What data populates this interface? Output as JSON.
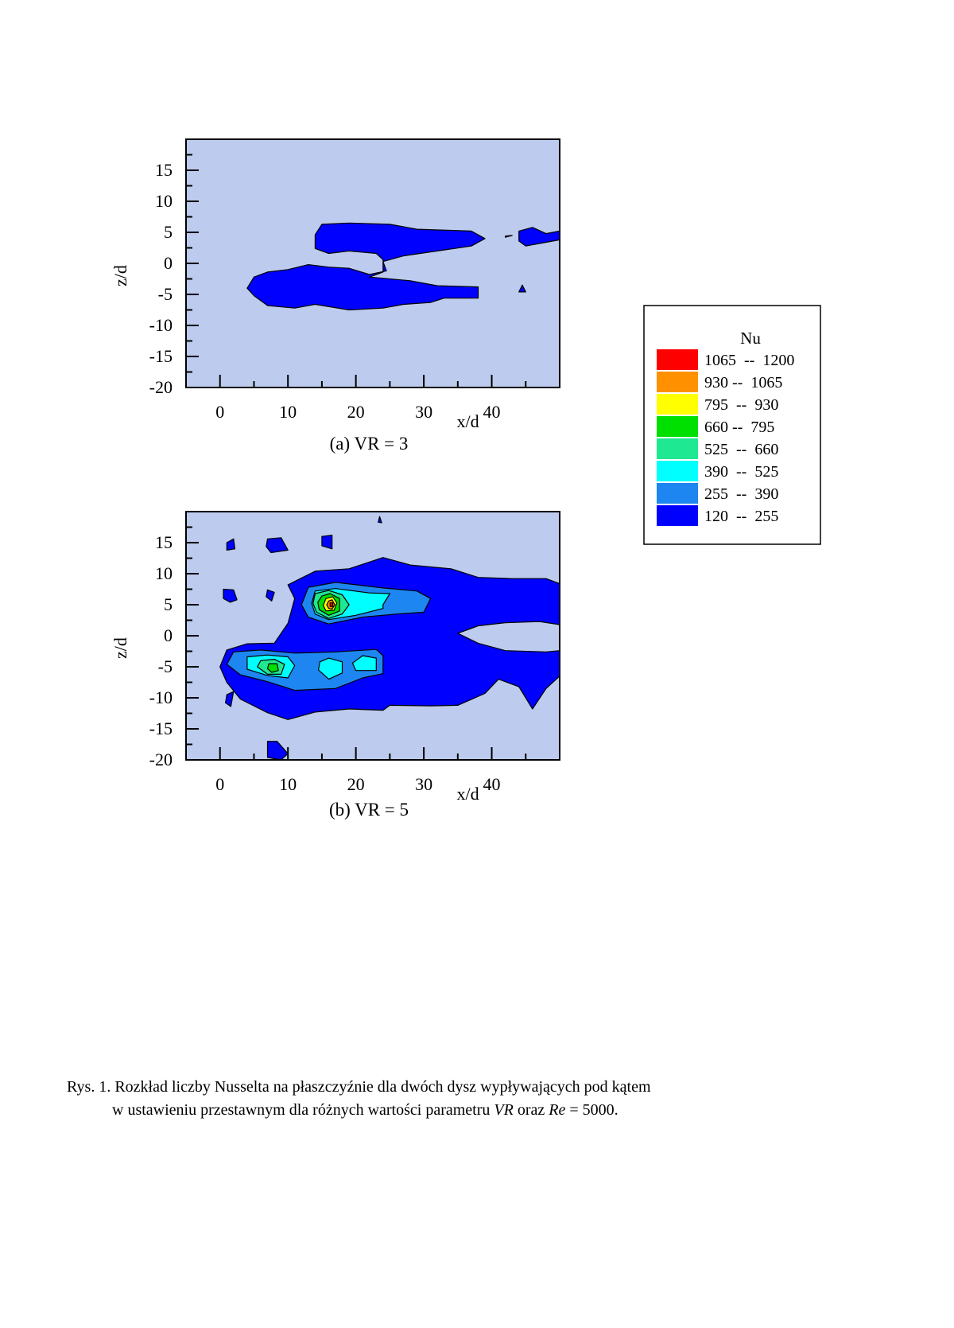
{
  "colors": {
    "background": "#bccbee",
    "levels": [
      "#0000ff",
      "#1e86f0",
      "#00ffff",
      "#1ee892",
      "#00e000",
      "#ffff00",
      "#ff9000",
      "#ff0000"
    ]
  },
  "legend": {
    "title": "Nu",
    "items": [
      {
        "range": "1065  --  1200",
        "color": "#ff0000"
      },
      {
        "range": "930 --  1065",
        "color": "#ff9000"
      },
      {
        "range": "795  --  930",
        "color": "#ffff00"
      },
      {
        "range": "660 --  795",
        "color": "#00e000"
      },
      {
        "range": "525  --  660",
        "color": "#1ee892"
      },
      {
        "range": "390  --  525",
        "color": "#00ffff"
      },
      {
        "range": "255  --  390",
        "color": "#1e86f0"
      },
      {
        "range": "120  --  255",
        "color": "#0000ff"
      }
    ]
  },
  "caption": {
    "line1": "Rys. 1. Rozkład liczby Nusselta na płaszczyźnie dla dwóch dysz wypływających pod kątem",
    "line2_a": "w ustawieniu przestawnym dla różnych wartości parametru ",
    "line2_vr": "VR",
    "line2_b": " oraz ",
    "line2_re": "Re",
    "line2_c": " = 5000."
  },
  "chart_data": [
    {
      "type": "heatmap",
      "subtitle": "(a) VR = 3",
      "xlabel": "x/d",
      "ylabel": "z/d",
      "xlim": [
        -5,
        50
      ],
      "ylim": [
        -20,
        20
      ],
      "xticks": [
        0,
        10,
        20,
        30,
        40
      ],
      "yticks": [
        15,
        10,
        5,
        0,
        -5,
        -10,
        -15,
        -20
      ],
      "contour_levels": [
        120,
        255,
        390,
        525,
        660,
        795,
        930,
        1065,
        1200
      ],
      "regions": [
        {
          "level_min": 120,
          "level_max": 255,
          "polygon": [
            [
              19,
              6.5
            ],
            [
              25,
              6.3
            ],
            [
              29,
              5.5
            ],
            [
              37,
              5.2
            ],
            [
              39,
              4
            ],
            [
              37,
              2.8
            ],
            [
              32,
              2
            ],
            [
              27,
              1.2
            ],
            [
              24,
              0.3
            ],
            [
              24.5,
              -1.2
            ],
            [
              22,
              -1.8
            ],
            [
              19,
              -0.8
            ],
            [
              16,
              -0.6
            ],
            [
              13,
              -0.2
            ],
            [
              10,
              -1
            ],
            [
              7,
              -1.4
            ],
            [
              5,
              -2.2
            ],
            [
              4,
              -4
            ],
            [
              5,
              -5.2
            ],
            [
              7,
              -6.8
            ],
            [
              11,
              -7.2
            ],
            [
              14,
              -6.6
            ],
            [
              19,
              -7.5
            ],
            [
              24,
              -7.2
            ],
            [
              27,
              -6.6
            ],
            [
              31,
              -6.3
            ],
            [
              33,
              -5.6
            ],
            [
              38,
              -5.6
            ],
            [
              38,
              -3.8
            ],
            [
              32,
              -3.6
            ],
            [
              28,
              -2.8
            ],
            [
              22,
              -2.2
            ],
            [
              24,
              -1.4
            ],
            [
              24,
              0.6
            ],
            [
              23,
              1.6
            ],
            [
              19,
              2
            ],
            [
              16,
              1.6
            ],
            [
              14,
              2.4
            ],
            [
              14,
              4.6
            ],
            [
              15,
              6.3
            ]
          ]
        },
        {
          "level_min": 120,
          "level_max": 255,
          "polygon": [
            [
              44,
              5.2
            ],
            [
              46,
              5.8
            ],
            [
              48,
              4.8
            ],
            [
              50,
              5.2
            ],
            [
              50,
              3.8
            ],
            [
              48,
              3.4
            ],
            [
              45,
              2.8
            ],
            [
              44,
              3.6
            ]
          ]
        },
        {
          "level_min": 120,
          "level_max": 255,
          "polygon": [
            [
              44.5,
              -3.5
            ],
            [
              45,
              -4.6
            ],
            [
              44,
              -4.6
            ]
          ]
        },
        {
          "level_min": 120,
          "level_max": 255,
          "polygon": [
            [
              42,
              4.2
            ],
            [
              43,
              4.5
            ],
            [
              42,
              4.4
            ]
          ]
        }
      ]
    },
    {
      "type": "heatmap",
      "subtitle": "(b) VR = 5",
      "xlabel": "x/d",
      "ylabel": "z/d",
      "xlim": [
        -5,
        50
      ],
      "ylim": [
        -20,
        20
      ],
      "xticks": [
        0,
        10,
        20,
        30,
        40
      ],
      "yticks": [
        15,
        10,
        5,
        0,
        -5,
        -10,
        -15,
        -20
      ],
      "contour_levels": [
        120,
        255,
        390,
        525,
        660,
        795,
        930,
        1065,
        1200
      ],
      "regions": [
        {
          "level_min": 120,
          "level_max": 255,
          "polygon": [
            [
              10,
              8.2
            ],
            [
              14,
              10.4
            ],
            [
              19,
              10.8
            ],
            [
              24,
              12.6
            ],
            [
              28,
              11.4
            ],
            [
              34,
              10.8
            ],
            [
              38,
              9.4
            ],
            [
              43,
              9.2
            ],
            [
              48,
              9.2
            ],
            [
              50,
              8.4
            ],
            [
              50,
              1.8
            ],
            [
              47,
              2.3
            ],
            [
              42,
              2.1
            ],
            [
              38,
              1.6
            ],
            [
              35,
              0.4
            ],
            [
              38,
              -1.2
            ],
            [
              42,
              -2.4
            ],
            [
              48,
              -2.6
            ],
            [
              50,
              -2.4
            ],
            [
              50,
              -6.5
            ],
            [
              48,
              -8.5
            ],
            [
              46,
              -11.8
            ],
            [
              44,
              -8.2
            ],
            [
              41,
              -7
            ],
            [
              39,
              -9.3
            ],
            [
              35,
              -11.2
            ],
            [
              31,
              -11.3
            ],
            [
              25,
              -11.2
            ],
            [
              24,
              -12
            ],
            [
              19,
              -11.8
            ],
            [
              14,
              -12.3
            ],
            [
              10,
              -13.5
            ],
            [
              7,
              -12.4
            ],
            [
              3,
              -10.2
            ],
            [
              1,
              -7.5
            ],
            [
              0,
              -5
            ],
            [
              1,
              -2.3
            ],
            [
              4,
              -1.3
            ],
            [
              8,
              -1.2
            ],
            [
              10,
              2
            ],
            [
              11,
              6
            ]
          ]
        },
        {
          "level_min": 255,
          "level_max": 390,
          "polygon": [
            [
              13,
              7.8
            ],
            [
              17,
              8.6
            ],
            [
              24,
              7.7
            ],
            [
              29,
              7.2
            ],
            [
              31,
              6
            ],
            [
              30,
              3.8
            ],
            [
              26,
              3.5
            ],
            [
              21,
              3
            ],
            [
              16,
              1.9
            ],
            [
              13,
              3
            ],
            [
              12,
              5
            ]
          ]
        },
        {
          "level_min": 255,
          "level_max": 390,
          "polygon": [
            [
              2,
              -2.6
            ],
            [
              6,
              -2.3
            ],
            [
              11,
              -2.8
            ],
            [
              17,
              -2.6
            ],
            [
              23,
              -2.2
            ],
            [
              24,
              -3.2
            ],
            [
              24,
              -6.1
            ],
            [
              21,
              -6.8
            ],
            [
              17,
              -8.5
            ],
            [
              11,
              -8.8
            ],
            [
              7,
              -7.4
            ],
            [
              3,
              -6.3
            ],
            [
              1,
              -4.6
            ]
          ]
        },
        {
          "level_min": 390,
          "level_max": 525,
          "polygon": [
            [
              14,
              7.2
            ],
            [
              17,
              7.6
            ],
            [
              22,
              6.9
            ],
            [
              25,
              6.8
            ],
            [
              24,
              5
            ],
            [
              24,
              4.4
            ],
            [
              20,
              3.3
            ],
            [
              16,
              2.6
            ],
            [
              14,
              3.5
            ],
            [
              13.5,
              5.2
            ]
          ]
        },
        {
          "level_min": 390,
          "level_max": 525,
          "polygon": [
            [
              4,
              -3.4
            ],
            [
              7,
              -3.1
            ],
            [
              10,
              -3.4
            ],
            [
              11,
              -4.8
            ],
            [
              10,
              -6.8
            ],
            [
              7,
              -6.4
            ],
            [
              4,
              -5.4
            ]
          ]
        },
        {
          "level_min": 390,
          "level_max": 525,
          "polygon": [
            [
              16,
              -3.6
            ],
            [
              18,
              -4.2
            ],
            [
              18,
              -6
            ],
            [
              16,
              -7
            ],
            [
              14.5,
              -5.5
            ],
            [
              14.7,
              -4.2
            ]
          ]
        },
        {
          "level_min": 390,
          "level_max": 525,
          "polygon": [
            [
              21,
              -3.2
            ],
            [
              23,
              -3.6
            ],
            [
              23,
              -5.6
            ],
            [
              20,
              -5.6
            ],
            [
              19.5,
              -4.4
            ]
          ]
        },
        {
          "level_min": 525,
          "level_max": 660,
          "polygon": [
            [
              14,
              6.8
            ],
            [
              16,
              7.3
            ],
            [
              18,
              6.6
            ],
            [
              19,
              5
            ],
            [
              18,
              3.5
            ],
            [
              16,
              2.8
            ],
            [
              14.2,
              3.8
            ],
            [
              13.7,
              5.2
            ]
          ]
        },
        {
          "level_min": 525,
          "level_max": 660,
          "polygon": [
            [
              6,
              -4
            ],
            [
              8,
              -3.8
            ],
            [
              9.5,
              -4.6
            ],
            [
              9,
              -6.2
            ],
            [
              7,
              -6.2
            ],
            [
              5.5,
              -5
            ]
          ]
        },
        {
          "level_min": 660,
          "level_max": 795,
          "polygon": [
            [
              15,
              6.4
            ],
            [
              16.2,
              6.8
            ],
            [
              17.6,
              6
            ],
            [
              17.6,
              4
            ],
            [
              16,
              3.3
            ],
            [
              14.6,
              4.2
            ],
            [
              14.4,
              5.4
            ]
          ]
        },
        {
          "level_min": 660,
          "level_max": 795,
          "polygon": [
            [
              7.2,
              -4.5
            ],
            [
              8.4,
              -4.5
            ],
            [
              8.6,
              -5.6
            ],
            [
              7.6,
              -5.9
            ],
            [
              7,
              -5.3
            ]
          ]
        },
        {
          "level_min": 795,
          "level_max": 930,
          "polygon": [
            [
              15.6,
              6
            ],
            [
              16.6,
              6.3
            ],
            [
              17.2,
              5.3
            ],
            [
              16.8,
              4.1
            ],
            [
              15.6,
              4
            ],
            [
              15.2,
              4.9
            ]
          ]
        },
        {
          "level_min": 930,
          "level_max": 1065,
          "polygon": [
            [
              16,
              5.6
            ],
            [
              16.5,
              5.8
            ],
            [
              16.9,
              5
            ],
            [
              16.5,
              4.3
            ],
            [
              16,
              4.4
            ],
            [
              15.7,
              5
            ]
          ]
        },
        {
          "level_min": 1065,
          "level_max": 1200,
          "polygon": [
            [
              16.2,
              5.3
            ],
            [
              16.6,
              5.3
            ],
            [
              16.6,
              4.7
            ],
            [
              16.2,
              4.7
            ]
          ]
        },
        {
          "level_min": 120,
          "level_max": 255,
          "polygon": [
            [
              1,
              15
            ],
            [
              2,
              15.6
            ],
            [
              2.2,
              14
            ],
            [
              1,
              13.8
            ]
          ]
        },
        {
          "level_min": 120,
          "level_max": 255,
          "polygon": [
            [
              7,
              15.6
            ],
            [
              9,
              15.8
            ],
            [
              10,
              13.8
            ],
            [
              7.5,
              13.4
            ],
            [
              6.8,
              14.4
            ]
          ]
        },
        {
          "level_min": 120,
          "level_max": 255,
          "polygon": [
            [
              15,
              16
            ],
            [
              16.5,
              16.2
            ],
            [
              16.5,
              14
            ],
            [
              15,
              14.5
            ]
          ]
        },
        {
          "level_min": 120,
          "level_max": 255,
          "polygon": [
            [
              23.5,
              19.2
            ],
            [
              23.8,
              18.2
            ],
            [
              23.3,
              18.3
            ]
          ]
        },
        {
          "level_min": 120,
          "level_max": 255,
          "polygon": [
            [
              0.5,
              7.5
            ],
            [
              2,
              7.4
            ],
            [
              2.5,
              5.8
            ],
            [
              1.5,
              5.4
            ],
            [
              0.5,
              6
            ]
          ]
        },
        {
          "level_min": 120,
          "level_max": 255,
          "polygon": [
            [
              7,
              7.4
            ],
            [
              8,
              7
            ],
            [
              7.6,
              5.6
            ],
            [
              6.8,
              6.3
            ]
          ]
        },
        {
          "level_min": 120,
          "level_max": 255,
          "polygon": [
            [
              1,
              -9.5
            ],
            [
              2,
              -9
            ],
            [
              1.6,
              -11.4
            ],
            [
              0.8,
              -10.8
            ]
          ]
        },
        {
          "level_min": 120,
          "level_max": 255,
          "polygon": [
            [
              7,
              -17
            ],
            [
              8.4,
              -17
            ],
            [
              10,
              -19
            ],
            [
              9,
              -20
            ],
            [
              7,
              -19.6
            ],
            [
              7,
              -18
            ]
          ]
        }
      ]
    }
  ]
}
